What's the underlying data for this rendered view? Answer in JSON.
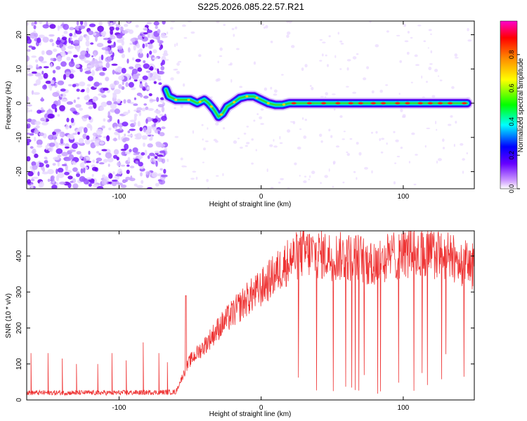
{
  "title": "S225.2026.085.22.57.R21",
  "chart_data": [
    {
      "type": "heatmap",
      "xlabel": "Height of straight line (km)",
      "ylabel": "Frequency (Hz)",
      "xlim": [
        -165,
        150
      ],
      "ylim": [
        -25,
        24
      ],
      "xticks": [
        -100,
        0,
        100
      ],
      "yticks": [
        -20,
        -10,
        0,
        10,
        20
      ],
      "colorbar": {
        "label": "Normalized spectral amplitude",
        "range": [
          0,
          1
        ],
        "ticks": [
          "0.0",
          "0.2",
          "0.4",
          "0.6",
          "0.8"
        ],
        "colors": [
          "#ffffff",
          "#cc99ff",
          "#6600ff",
          "#0000ff",
          "#00ffff",
          "#00ff00",
          "#ffff00",
          "#ff8800",
          "#ff0000",
          "#ff00cc"
        ]
      },
      "noise_region_end_km": -67,
      "ridge_frequency_hz": {
        "x": [
          -67,
          -65,
          -60,
          -55,
          -50,
          -45,
          -40,
          -37,
          -33,
          -30,
          -27,
          -24,
          -20,
          -15,
          -10,
          -5,
          0,
          5,
          10,
          15,
          20,
          30,
          40,
          60,
          80,
          100,
          120,
          145
        ],
        "y": [
          4,
          2,
          1,
          1,
          1,
          0,
          1,
          0,
          -2,
          -4,
          -3,
          -1,
          0,
          1.5,
          2,
          2,
          1,
          0,
          -0.5,
          -0.5,
          0,
          0,
          0,
          0,
          0,
          0,
          0,
          0
        ]
      }
    },
    {
      "type": "line",
      "xlabel": "Height of straight line (km)",
      "ylabel": "SNR (10 * v/v)",
      "xlim": [
        -165,
        150
      ],
      "ylim": [
        0,
        470
      ],
      "xticks": [
        -100,
        0,
        100
      ],
      "yticks": [
        0,
        100,
        200,
        300,
        400
      ],
      "line_color": "#ee3333",
      "envelope": {
        "x": [
          -165,
          -100,
          -60,
          -56,
          -50,
          -40,
          -30,
          -20,
          -10,
          0,
          10,
          20,
          30,
          50,
          70,
          80,
          90,
          110,
          130,
          150
        ],
        "y": [
          20,
          20,
          22,
          60,
          110,
          150,
          200,
          240,
          280,
          310,
          350,
          390,
          410,
          400,
          395,
          370,
          400,
          410,
          400,
          370
        ]
      },
      "spikes": {
        "x": [
          -162,
          -150,
          -140,
          -130,
          -115,
          -105,
          -95,
          -83,
          -72,
          -66
        ],
        "y": [
          130,
          130,
          115,
          100,
          100,
          130,
          110,
          160,
          130,
          105
        ]
      },
      "peak": {
        "x": -53,
        "y": 290
      }
    }
  ]
}
